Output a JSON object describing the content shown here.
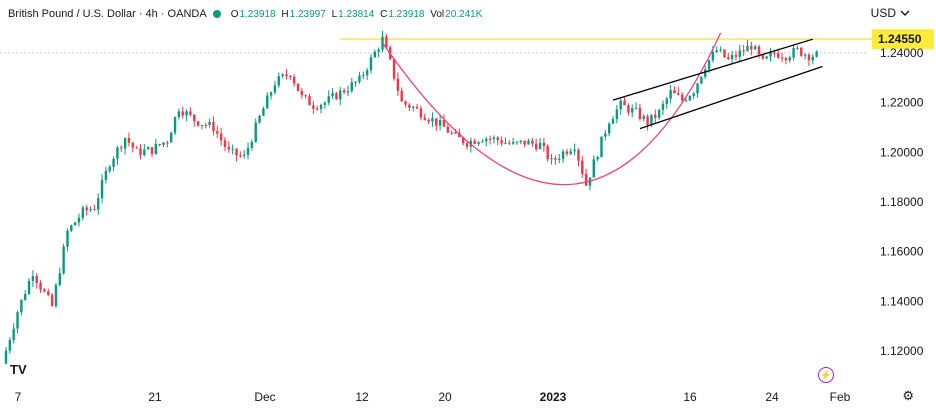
{
  "header": {
    "symbol": "British Pound / U.S. Dollar · 4h · OANDA",
    "o_label": "O",
    "o_value": "1.23918",
    "h_label": "H",
    "h_value": "1.23997",
    "l_label": "L",
    "l_value": "1.23814",
    "c_label": "C",
    "c_value": "1.23918",
    "vol_label": "Vol",
    "vol_value": "20.241K"
  },
  "currency": "USD",
  "currency_icon": "chevron-down-icon",
  "logo": "TV",
  "settings_icon": "gear-icon",
  "alert_icon": "lightning-icon",
  "chart_data": {
    "type": "candlestick",
    "title": "British Pound / U.S. Dollar · 4h · OANDA",
    "ylim": [
      1.11,
      1.25
    ],
    "y_ticks": [
      "1.24000",
      "1.22000",
      "1.20000",
      "1.18000",
      "1.16000",
      "1.14000",
      "1.12000"
    ],
    "x_ticks": [
      "7",
      "21",
      "Dec",
      "12",
      "20",
      "2023",
      "16",
      "24",
      "Feb"
    ],
    "x_tick_bold": [
      false,
      false,
      false,
      false,
      false,
      true,
      false,
      false,
      false
    ],
    "resistance_level": 1.2455,
    "resistance_label": "1.24550",
    "colors": {
      "up": "#089981",
      "down": "#f23645",
      "resistance": "#f5e663",
      "arc": "#e8457a",
      "channel": "#000000"
    },
    "trend_path": [
      [
        0,
        1.115
      ],
      [
        8,
        1.136
      ],
      [
        16,
        1.152
      ],
      [
        20,
        1.146
      ],
      [
        26,
        1.138
      ],
      [
        34,
        1.168
      ],
      [
        42,
        1.176
      ],
      [
        48,
        1.178
      ],
      [
        56,
        1.196
      ],
      [
        64,
        1.206
      ],
      [
        70,
        1.2
      ],
      [
        78,
        1.201
      ],
      [
        86,
        1.205
      ],
      [
        92,
        1.218
      ],
      [
        100,
        1.213
      ],
      [
        110,
        1.21
      ],
      [
        118,
        1.2
      ],
      [
        126,
        1.198
      ],
      [
        134,
        1.214
      ],
      [
        142,
        1.228
      ],
      [
        150,
        1.232
      ],
      [
        156,
        1.222
      ],
      [
        162,
        1.219
      ],
      [
        168,
        1.22
      ],
      [
        178,
        1.225
      ],
      [
        186,
        1.229
      ],
      [
        194,
        1.24
      ],
      [
        198,
        1.2455
      ],
      [
        202,
        1.236
      ],
      [
        208,
        1.22
      ],
      [
        214,
        1.218
      ],
      [
        222,
        1.214
      ],
      [
        230,
        1.21
      ],
      [
        236,
        1.206
      ],
      [
        242,
        1.204
      ],
      [
        250,
        1.206
      ],
      [
        258,
        1.205
      ],
      [
        266,
        1.203
      ],
      [
        272,
        1.204
      ],
      [
        280,
        1.203
      ],
      [
        286,
        1.196
      ],
      [
        292,
        1.2
      ],
      [
        298,
        1.203
      ],
      [
        304,
        1.187
      ],
      [
        310,
        1.2
      ],
      [
        316,
        1.213
      ],
      [
        322,
        1.219
      ],
      [
        330,
        1.216
      ],
      [
        336,
        1.212
      ],
      [
        342,
        1.216
      ],
      [
        348,
        1.224
      ],
      [
        354,
        1.221
      ],
      [
        360,
        1.225
      ],
      [
        366,
        1.235
      ],
      [
        372,
        1.241
      ],
      [
        378,
        1.237
      ],
      [
        384,
        1.24
      ],
      [
        390,
        1.243
      ],
      [
        396,
        1.236
      ],
      [
        402,
        1.24
      ],
      [
        408,
        1.239
      ],
      [
        414,
        1.241
      ],
      [
        420,
        1.239
      ]
    ],
    "x_range": [
      0,
      430
    ]
  }
}
